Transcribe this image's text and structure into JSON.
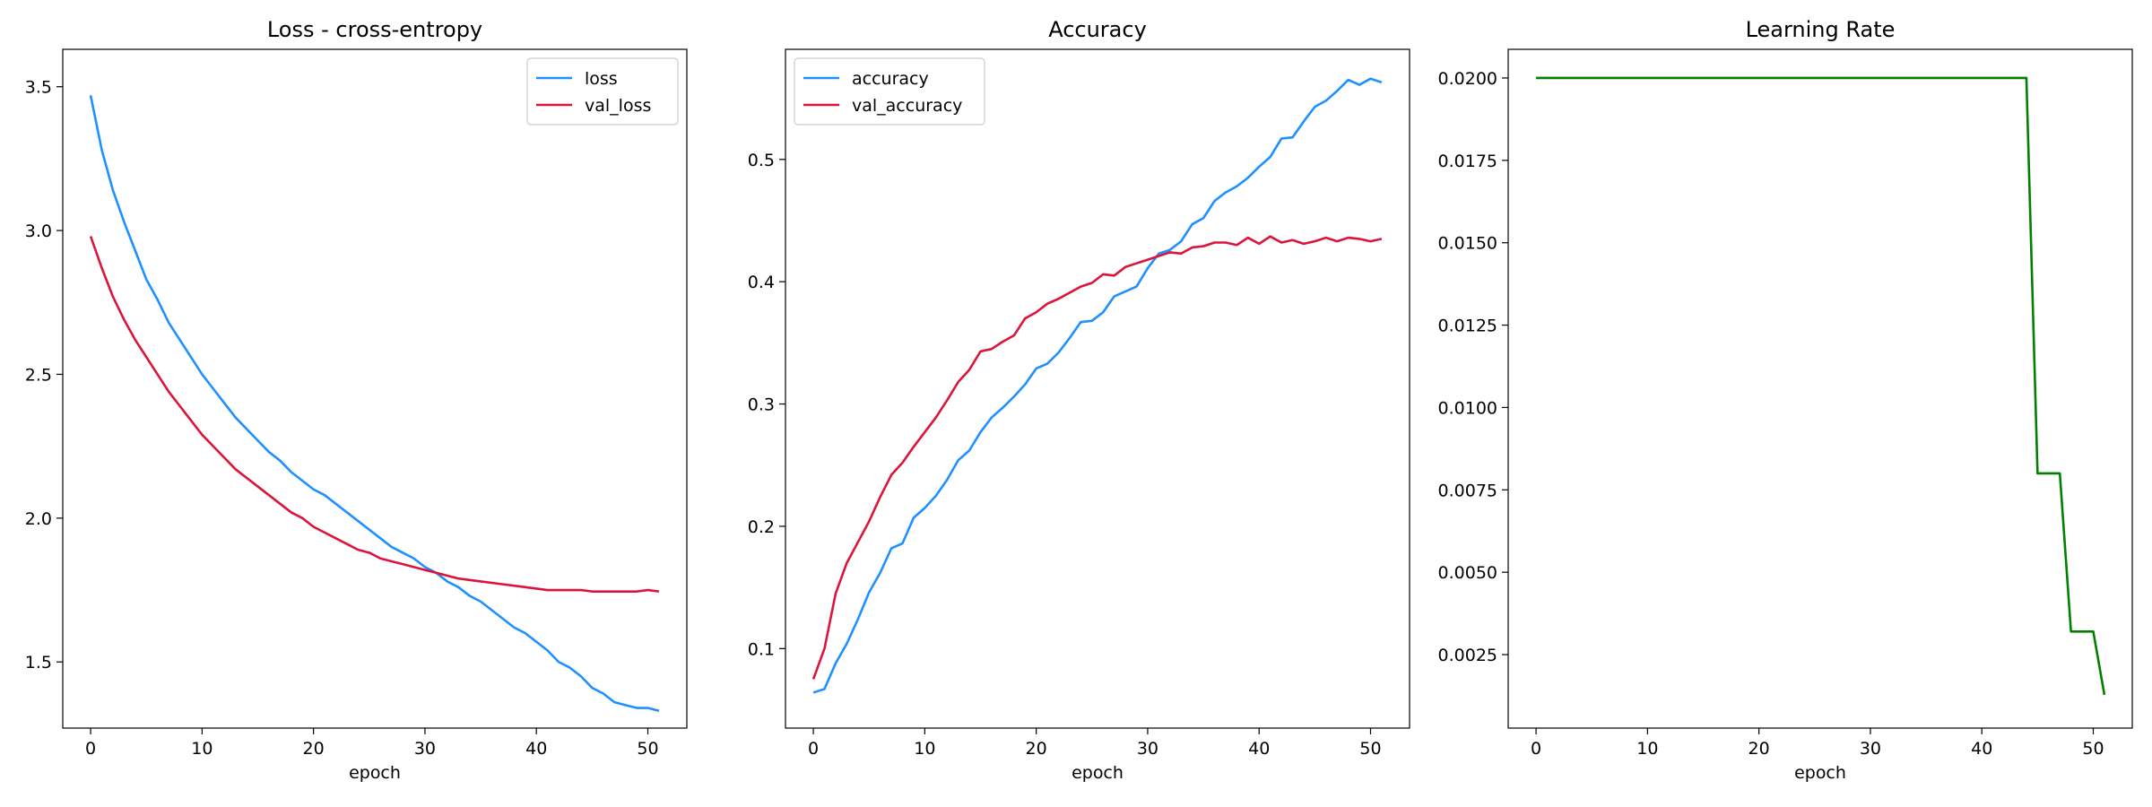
{
  "chart_data": [
    {
      "type": "line",
      "title": "Loss - cross-entropy",
      "xlabel": "epoch",
      "ylabel": "",
      "xlim": [
        -2.5,
        53.5
      ],
      "ylim": [
        1.27,
        3.63
      ],
      "xticks": [
        0,
        10,
        20,
        30,
        40,
        50
      ],
      "yticks": [
        1.5,
        2.0,
        2.5,
        3.0,
        3.5
      ],
      "ytick_labels": [
        "1.5",
        "2.0",
        "2.5",
        "3.0",
        "3.5"
      ],
      "legend": "top-right",
      "grid": false,
      "series": [
        {
          "name": "loss",
          "color": "#1E90FF",
          "values": [
            3.47,
            3.28,
            3.14,
            3.03,
            2.93,
            2.83,
            2.76,
            2.68,
            2.62,
            2.56,
            2.5,
            2.45,
            2.4,
            2.35,
            2.31,
            2.27,
            2.23,
            2.2,
            2.16,
            2.13,
            2.1,
            2.08,
            2.05,
            2.02,
            1.99,
            1.96,
            1.93,
            1.9,
            1.88,
            1.86,
            1.83,
            1.81,
            1.78,
            1.76,
            1.73,
            1.71,
            1.68,
            1.65,
            1.62,
            1.6,
            1.57,
            1.54,
            1.5,
            1.48,
            1.45,
            1.41,
            1.39,
            1.36,
            1.35,
            1.34,
            1.34,
            1.33
          ]
        },
        {
          "name": "val_loss",
          "color": "#DC143C",
          "values": [
            2.98,
            2.87,
            2.77,
            2.69,
            2.62,
            2.56,
            2.5,
            2.44,
            2.39,
            2.34,
            2.29,
            2.25,
            2.21,
            2.17,
            2.14,
            2.11,
            2.08,
            2.05,
            2.02,
            2.0,
            1.97,
            1.95,
            1.93,
            1.91,
            1.89,
            1.88,
            1.86,
            1.85,
            1.84,
            1.83,
            1.82,
            1.81,
            1.8,
            1.79,
            1.785,
            1.78,
            1.775,
            1.77,
            1.765,
            1.76,
            1.755,
            1.75,
            1.75,
            1.75,
            1.75,
            1.745,
            1.745,
            1.745,
            1.745,
            1.745,
            1.75,
            1.745
          ]
        }
      ]
    },
    {
      "type": "line",
      "title": "Accuracy",
      "xlabel": "epoch",
      "ylabel": "",
      "xlim": [
        -2.5,
        53.5
      ],
      "ylim": [
        0.035,
        0.59
      ],
      "xticks": [
        0,
        10,
        20,
        30,
        40,
        50
      ],
      "yticks": [
        0.1,
        0.2,
        0.3,
        0.4,
        0.5
      ],
      "ytick_labels": [
        "0.1",
        "0.2",
        "0.3",
        "0.4",
        "0.5"
      ],
      "legend": "top-left",
      "grid": false,
      "series": [
        {
          "name": "accuracy",
          "color": "#1E90FF",
          "values": [
            0.064,
            0.067,
            0.088,
            0.104,
            0.124,
            0.146,
            0.162,
            0.182,
            0.186,
            0.207,
            0.215,
            0.225,
            0.238,
            0.254,
            0.262,
            0.277,
            0.289,
            0.297,
            0.306,
            0.316,
            0.329,
            0.333,
            0.342,
            0.354,
            0.367,
            0.368,
            0.375,
            0.388,
            0.392,
            0.396,
            0.411,
            0.423,
            0.426,
            0.433,
            0.447,
            0.452,
            0.466,
            0.473,
            0.478,
            0.485,
            0.494,
            0.502,
            0.517,
            0.518,
            0.531,
            0.543,
            0.548,
            0.556,
            0.565,
            0.561,
            0.566,
            0.563
          ]
        },
        {
          "name": "val_accuracy",
          "color": "#DC143C",
          "values": [
            0.075,
            0.1,
            0.145,
            0.17,
            0.187,
            0.204,
            0.224,
            0.242,
            0.252,
            0.265,
            0.277,
            0.289,
            0.303,
            0.318,
            0.328,
            0.343,
            0.345,
            0.351,
            0.356,
            0.37,
            0.375,
            0.382,
            0.386,
            0.391,
            0.396,
            0.399,
            0.406,
            0.405,
            0.412,
            0.415,
            0.418,
            0.421,
            0.424,
            0.423,
            0.428,
            0.429,
            0.432,
            0.432,
            0.43,
            0.436,
            0.431,
            0.437,
            0.432,
            0.434,
            0.431,
            0.433,
            0.436,
            0.433,
            0.436,
            0.435,
            0.433,
            0.435
          ]
        }
      ]
    },
    {
      "type": "line",
      "title": "Learning Rate",
      "xlabel": "epoch",
      "ylabel": "",
      "xlim": [
        -2.5,
        53.5
      ],
      "ylim": [
        0.00027,
        0.02087
      ],
      "xticks": [
        0,
        10,
        20,
        30,
        40,
        50
      ],
      "yticks": [
        0.0025,
        0.005,
        0.0075,
        0.01,
        0.0125,
        0.015,
        0.0175,
        0.02
      ],
      "ytick_labels": [
        "0.0025",
        "0.0050",
        "0.0075",
        "0.0100",
        "0.0125",
        "0.0150",
        "0.0175",
        "0.0200"
      ],
      "legend": "none",
      "grid": false,
      "series": [
        {
          "color": "#008000",
          "values": [
            0.02,
            0.02,
            0.02,
            0.02,
            0.02,
            0.02,
            0.02,
            0.02,
            0.02,
            0.02,
            0.02,
            0.02,
            0.02,
            0.02,
            0.02,
            0.02,
            0.02,
            0.02,
            0.02,
            0.02,
            0.02,
            0.02,
            0.02,
            0.02,
            0.02,
            0.02,
            0.02,
            0.02,
            0.02,
            0.02,
            0.02,
            0.02,
            0.02,
            0.02,
            0.02,
            0.02,
            0.02,
            0.02,
            0.02,
            0.02,
            0.02,
            0.02,
            0.02,
            0.02,
            0.02,
            0.008,
            0.008,
            0.008,
            0.0032,
            0.0032,
            0.0032,
            0.00128
          ]
        }
      ]
    }
  ]
}
